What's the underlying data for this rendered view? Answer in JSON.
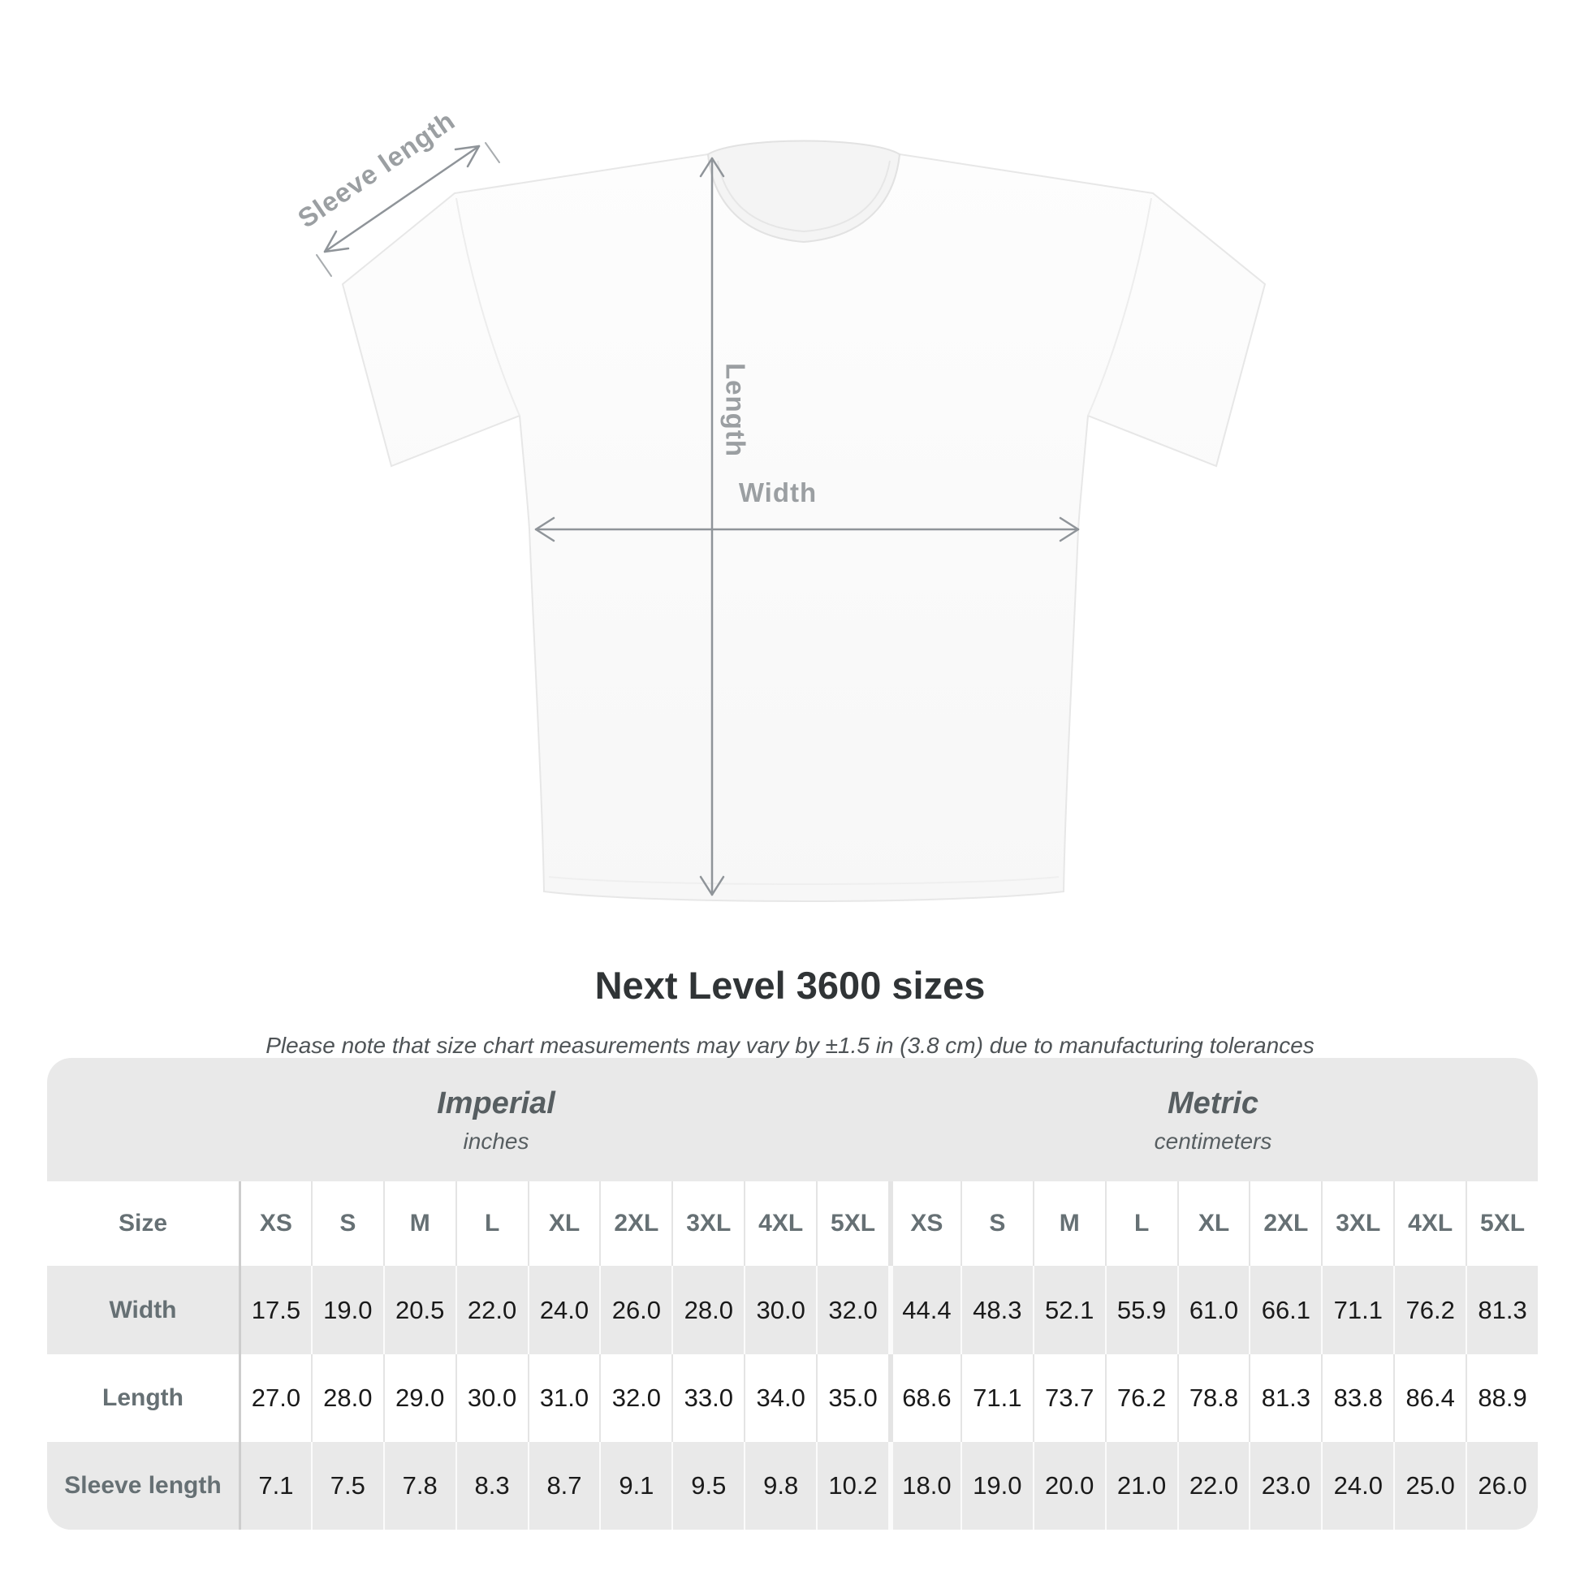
{
  "diagram": {
    "sleeve_length_label": "Sleeve length",
    "length_label": "Length",
    "width_label": "Width"
  },
  "title": "Next Level 3600 sizes",
  "subtitle": "Please note that size chart measurements may vary by ±1.5 in (3.8 cm) due to manufacturing tolerances",
  "size_table": {
    "imperial": {
      "label": "Imperial",
      "sublabel": "inches"
    },
    "metric": {
      "label": "Metric",
      "sublabel": "centimeters"
    },
    "size_col_header": "Size",
    "sizes": [
      "XS",
      "S",
      "M",
      "L",
      "XL",
      "2XL",
      "3XL",
      "4XL",
      "5XL"
    ],
    "rows": [
      {
        "label": "Width",
        "imperial": [
          "17.5",
          "19.0",
          "20.5",
          "22.0",
          "24.0",
          "26.0",
          "28.0",
          "30.0",
          "32.0"
        ],
        "metric": [
          "44.4",
          "48.3",
          "52.1",
          "55.9",
          "61.0",
          "66.1",
          "71.1",
          "76.2",
          "81.3"
        ]
      },
      {
        "label": "Length",
        "imperial": [
          "27.0",
          "28.0",
          "29.0",
          "30.0",
          "31.0",
          "32.0",
          "33.0",
          "34.0",
          "35.0"
        ],
        "metric": [
          "68.6",
          "71.1",
          "73.7",
          "76.2",
          "78.8",
          "81.3",
          "83.8",
          "86.4",
          "88.9"
        ]
      },
      {
        "label": "Sleeve length",
        "imperial": [
          "7.1",
          "7.5",
          "7.8",
          "8.3",
          "8.7",
          "9.1",
          "9.5",
          "9.8",
          "10.2"
        ],
        "metric": [
          "18.0",
          "19.0",
          "20.0",
          "21.0",
          "22.0",
          "23.0",
          "24.0",
          "25.0",
          "26.0"
        ]
      }
    ]
  },
  "colors": {
    "annotation_line": "#8f9499",
    "diagram_label": "#9b9fa2",
    "table_background": "#e9e9e9",
    "heading_text": "#303436",
    "unit_text": "#575e61",
    "table_label_text": "#667074",
    "value_text": "#1a1a1a"
  }
}
